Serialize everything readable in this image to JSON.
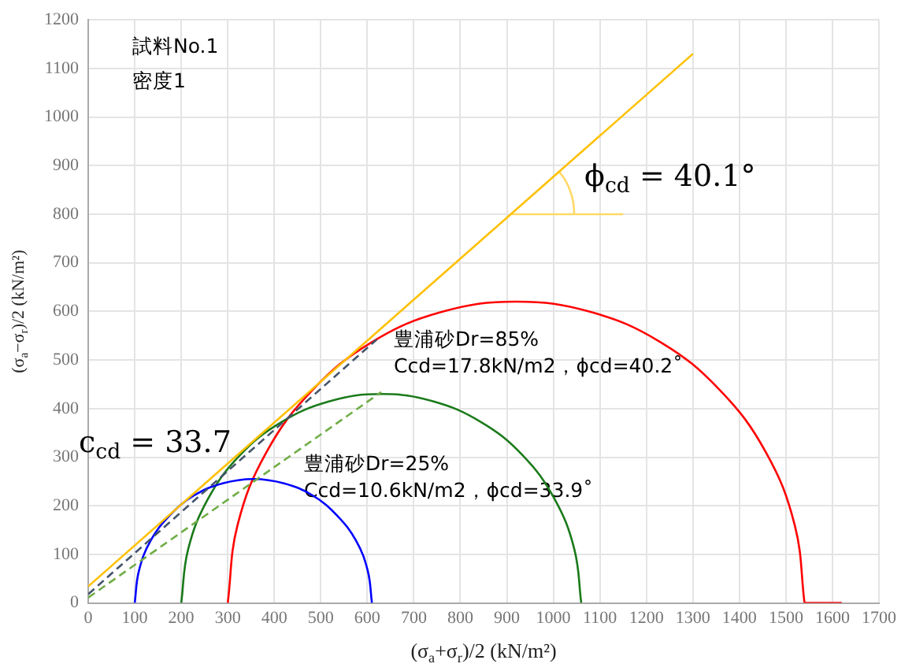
{
  "chart_data": {
    "type": "line",
    "xlabel": "(σ$_{a}$+σ$_{r}$)/2 (kN/m²)",
    "ylabel": "(σ$_{a}$−σ$_{r}$)/2 (kN/m²)",
    "xlim": [
      0,
      1700
    ],
    "ylim": [
      0,
      1200
    ],
    "xticks": [
      0,
      100,
      200,
      300,
      400,
      500,
      600,
      700,
      800,
      900,
      1000,
      1100,
      1200,
      1300,
      1400,
      1500,
      1600,
      1700
    ],
    "yticks": [
      0,
      100,
      200,
      300,
      400,
      500,
      600,
      700,
      800,
      900,
      1000,
      1100,
      1200
    ],
    "grid": true,
    "legend": false,
    "marker": "none",
    "series": [
      {
        "color": "#ffc000",
        "x": [
          0,
          1300
        ],
        "values": [
          34,
          1130
        ]
      },
      {
        "color": "#44546a",
        "line_style": "dashed",
        "x": [
          0,
          620
        ],
        "values": [
          18,
          542
        ]
      },
      {
        "color": "#70ad47",
        "line_style": "dashed",
        "x": [
          0,
          630
        ],
        "values": [
          11,
          434
        ]
      },
      {
        "color": "#ffd966",
        "x": [
          910,
          1150
        ],
        "values": [
          800,
          800
        ]
      },
      {
        "color": "#ffd966",
        "x": [
          1045,
          1043,
          1037,
          1027,
          1013
        ],
        "values": [
          800,
          823,
          846,
          868,
          887
        ]
      },
      {
        "color": "#0000ff",
        "x": [
          610,
          601,
          576,
          535,
          483,
          421,
          355,
          289,
          227,
          175,
          134,
          109,
          100
        ],
        "values": [
          0,
          66,
          128,
          180,
          221,
          246,
          255,
          246,
          221,
          180,
          128,
          66,
          0
        ]
      },
      {
        "color": "#1a7a1a",
        "x": [
          1060,
          1045,
          1002,
          934,
          845,
          741,
          630,
          519,
          415,
          326,
          258,
          215,
          200
        ],
        "values": [
          0,
          111,
          215,
          304,
          372,
          415,
          430,
          415,
          372,
          304,
          215,
          111,
          0
        ]
      },
      {
        "color": "#ff0000",
        "x": [
          1620,
          1540
        ],
        "values": [
          0,
          0
        ]
      },
      {
        "color": "#ff0000",
        "x": [
          1540,
          1519,
          1457,
          1358,
          1230,
          1080,
          920,
          760,
          610,
          482,
          383,
          321,
          300
        ],
        "values": [
          0,
          160,
          310,
          438,
          537,
          599,
          620,
          599,
          537,
          438,
          310,
          160,
          0
        ]
      }
    ],
    "annotations": [
      "試料No.1",
      "密度1",
      "ϕ$_{cd}$ = 40.1°",
      "c$_{cd}$ = 33.7",
      "豊浦砂Dr=85%",
      "Ccd=17.8kN/m2，ϕcd=40.2˚",
      "豊浦砂Dr=25%",
      "Ccd=10.6kN/m2，ϕcd=33.9˚"
    ]
  }
}
